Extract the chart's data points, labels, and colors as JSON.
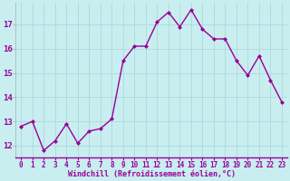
{
  "x": [
    0,
    1,
    2,
    3,
    4,
    5,
    6,
    7,
    8,
    9,
    10,
    11,
    12,
    13,
    14,
    15,
    16,
    17,
    18,
    19,
    20,
    21,
    22,
    23
  ],
  "y": [
    12.8,
    13.0,
    11.8,
    12.2,
    12.9,
    12.1,
    12.6,
    12.7,
    13.1,
    15.5,
    16.1,
    16.1,
    17.1,
    17.5,
    16.9,
    17.6,
    16.8,
    16.4,
    16.4,
    15.5,
    14.9,
    15.7,
    14.7,
    13.8
  ],
  "line_color": "#990099",
  "marker": "D",
  "marker_size": 2.0,
  "bg_color": "#c8eef0",
  "grid_color": "#b0d8dc",
  "xlabel": "Windchill (Refroidissement éolien,°C)",
  "xlabel_color": "#990099",
  "tick_color": "#990099",
  "ylim": [
    11.5,
    17.9
  ],
  "xlim": [
    -0.5,
    23.5
  ],
  "yticks": [
    12,
    13,
    14,
    15,
    16,
    17
  ],
  "xticks": [
    0,
    1,
    2,
    3,
    4,
    5,
    6,
    7,
    8,
    9,
    10,
    11,
    12,
    13,
    14,
    15,
    16,
    17,
    18,
    19,
    20,
    21,
    22,
    23
  ],
  "linewidth": 1.0,
  "fig_bg_color": "#c8eef0",
  "tick_fontsize": 5.5,
  "xlabel_fontsize": 6.0,
  "ytick_fontsize": 6.5
}
